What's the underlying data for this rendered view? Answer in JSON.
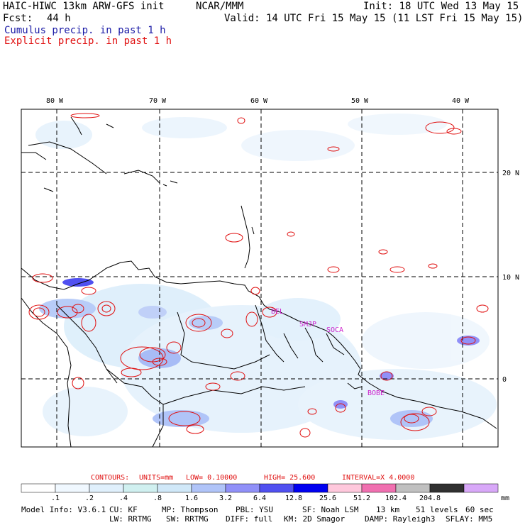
{
  "header": {
    "model_title": "HAIC-HIWC 13km ARW-GFS init",
    "org": "NCAR/MMM",
    "init": "Init: 18 UTC Wed 13 May 15",
    "fcst_label": "Fcst:",
    "fcst_value": "44 h",
    "valid": "Valid: 14 UTC Fri 15 May 15 (11 LST Fri 15 May 15)",
    "line_cumulus": "Cumulus precip. in past 1 h",
    "line_explicit": "Explicit precip. in past 1 h",
    "colors": {
      "cumulus": "#1a1aa6",
      "explicit": "#e01010"
    }
  },
  "map": {
    "lon_labels": [
      "80 W",
      "70 W",
      "60 W",
      "50 W",
      "40 W"
    ],
    "lat_labels": [
      "20 N",
      "10 N",
      "0"
    ],
    "station_labels": [
      "BEL",
      "SMJP",
      "SOCA",
      "BOBE"
    ],
    "station_color": "#cc22cc"
  },
  "contours": {
    "label": "CONTOURS:",
    "units": "UNITS=mm",
    "low": "LOW= 0.10000",
    "high": "HIGH= 25.600",
    "interval": "INTERVAL=X 4.0000",
    "color": "#e01010"
  },
  "colorbar": {
    "unit": "mm",
    "ticks": [
      ".1",
      ".2",
      ".4",
      ".8",
      "1.6",
      "3.2",
      "6.4",
      "12.8",
      "25.6",
      "51.2",
      "102.4",
      "204.8"
    ],
    "colors": [
      "#ffffff",
      "#f0f8ff",
      "#e0f0fc",
      "#d0f0f0",
      "#d0e8f8",
      "#b0c4f8",
      "#9090f8",
      "#5050f0",
      "#0000f0",
      "#ffc8dc",
      "#f070b0",
      "#c0c0c0",
      "#303030",
      "#d8a8f8"
    ]
  },
  "footer": {
    "model_info": "Model Info: V3.6.1",
    "cu": "CU: KF",
    "mp": "MP: Thompson",
    "pbl": "PBL: YSU",
    "sf": "SF: Noah LSM",
    "res": "13 km",
    "levels": "51 levels",
    "dt": "60 sec",
    "lw": "LW: RRTMG",
    "sw": "SW: RRTMG",
    "diff": "DIFF: full",
    "km": "KM: 2D Smagor",
    "damp": "DAMP: Rayleigh3",
    "sflay": "SFLAY: MM5"
  }
}
